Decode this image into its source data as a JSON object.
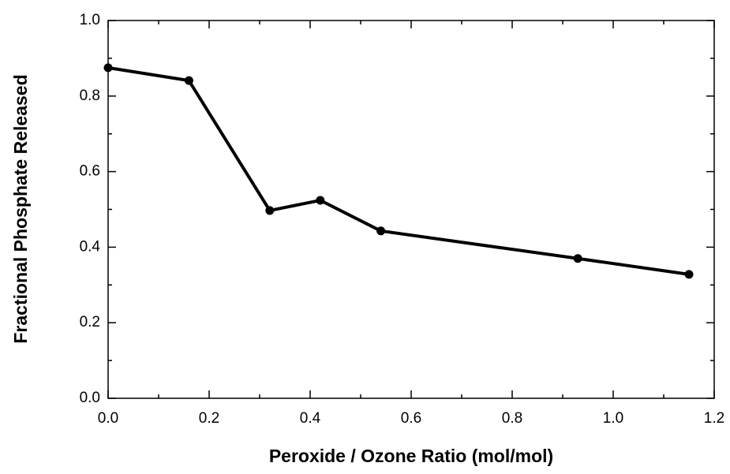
{
  "chart_data": {
    "type": "line",
    "xlabel": "Peroxide / Ozone Ratio (mol/mol)",
    "ylabel": "Fractional Phosphate Released",
    "x": [
      0,
      0.16,
      0.32,
      0.42,
      0.54,
      0.93,
      1.15
    ],
    "series": [
      {
        "color": "#000000",
        "values": [
          0.875,
          0.841,
          0.497,
          0.524,
          0.443,
          0.37,
          0.328
        ]
      }
    ],
    "xlim": [
      0,
      1.2
    ],
    "xticks": [
      {
        "value": 0,
        "label": "0.0"
      },
      0.2,
      0.4,
      0.6,
      0.8,
      {
        "value": 1,
        "label": "1.0"
      },
      1.2
    ],
    "ylim": [
      0,
      1
    ],
    "yticks": [
      {
        "value": 0,
        "label": "0.0"
      },
      0.2,
      0.4,
      0.6,
      0.8,
      {
        "value": 1,
        "label": "1.0"
      }
    ],
    "grid": false
  }
}
